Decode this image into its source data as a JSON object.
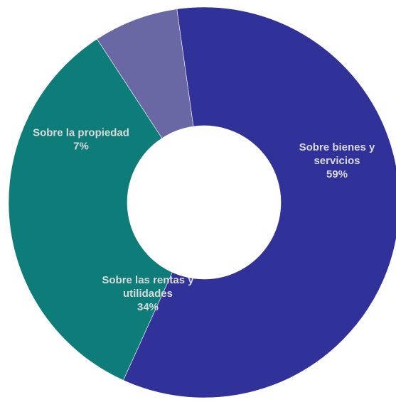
{
  "chart_data": {
    "type": "pie",
    "variant": "donut",
    "categories": [
      "Sobre bienes y servicios",
      "Sobre las rentas y utilidades",
      "Sobre la propiedad"
    ],
    "values": [
      59,
      34,
      7
    ],
    "colors": [
      "#31319a",
      "#0e7d7a",
      "#6a68a4"
    ],
    "label_color": "#d9d9d9",
    "title": "",
    "legend": "none",
    "slices": [
      {
        "name": "Sobre bienes y servicios",
        "value": 59,
        "label_lines": [
          "Sobre bienes y",
          "servicios"
        ],
        "percent_label": "59%",
        "color": "#31319a"
      },
      {
        "name": "Sobre las rentas y utilidades",
        "value": 34,
        "label_lines": [
          "Sobre las rentas y",
          "utilidades"
        ],
        "percent_label": "34%",
        "color": "#0e7d7a"
      },
      {
        "name": "Sobre la propiedad",
        "value": 7,
        "label_lines": [
          "Sobre la propiedad"
        ],
        "percent_label": "7%",
        "color": "#6a68a4"
      }
    ]
  }
}
